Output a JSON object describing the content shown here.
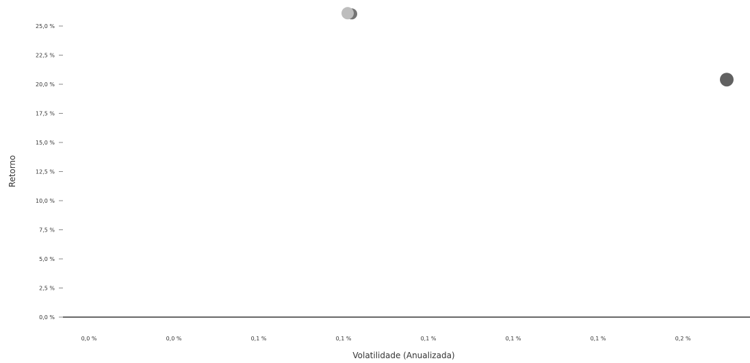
{
  "chart_data": {
    "type": "scatter",
    "title": "",
    "xlabel": "Volatilidade (Anualizada)",
    "ylabel": "Retorno",
    "y_ticks": [
      "0,0 %",
      "2,5 %",
      "5,0 %",
      "7,5 %",
      "10,0 %",
      "12,5 %",
      "15,0 %",
      "17,5 %",
      "20,0 %",
      "22,5 %",
      "25,0 %"
    ],
    "x_ticks": [
      "0,0 %",
      "0,0 %",
      "0,1 %",
      "0,1 %",
      "0,1 %",
      "0,1 %",
      "0,1 %",
      "0,2 %"
    ],
    "ylim": [
      0,
      27
    ],
    "grid": false,
    "series": [
      {
        "color": "#bdbdbd",
        "points": [
          {
            "x": 0.1,
            "y": 26.1
          }
        ]
      },
      {
        "color": "#616161",
        "points": [
          {
            "x": 0.2,
            "y": 20.4
          }
        ]
      }
    ]
  }
}
